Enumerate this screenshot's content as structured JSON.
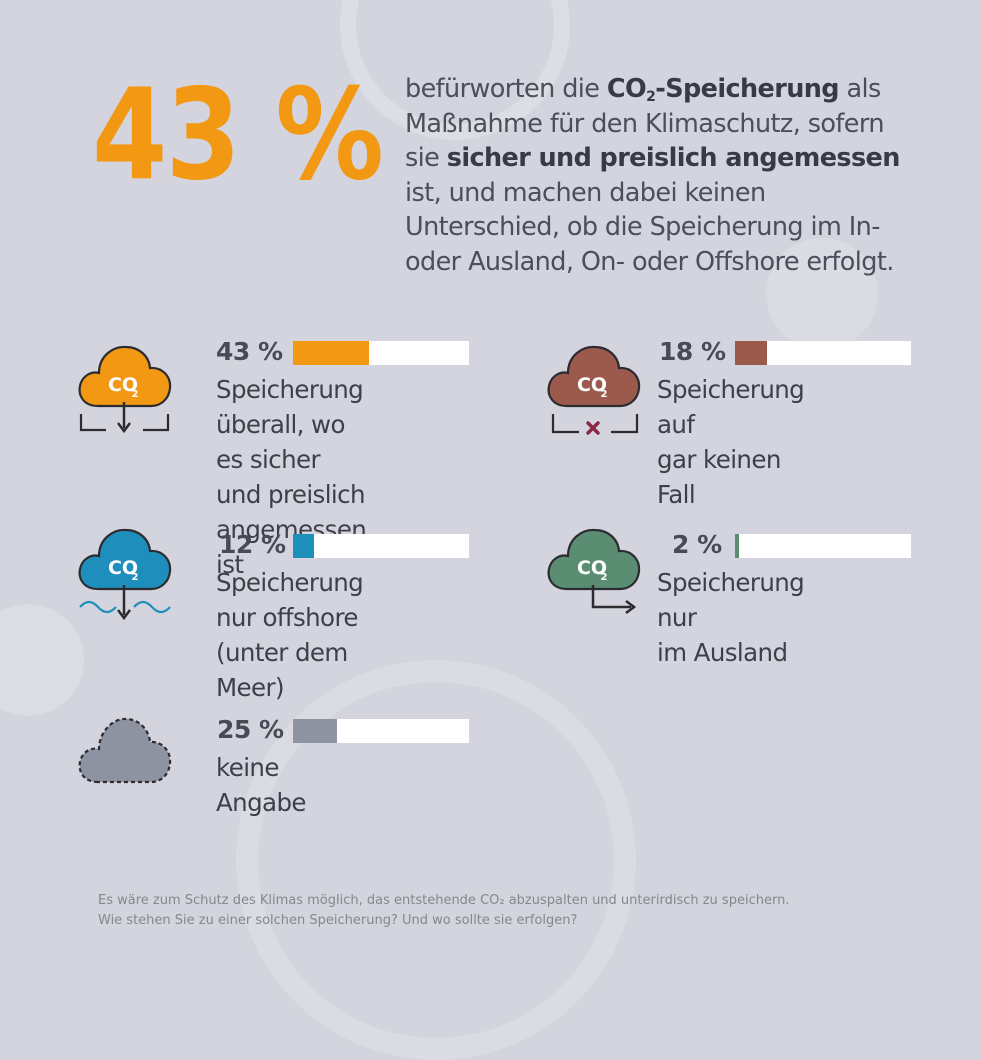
{
  "headline": {
    "big_percent": "43 %",
    "text_1": "befürworten die ",
    "co2_bold": "CO",
    "co2_sub": "2",
    "storage_bold": "-Speicherung",
    "text_2": " als Maßnahme für den Klimaschutz, sofern sie ",
    "condition_bold": "sicher und preislich angemessen",
    "text_3": " ist, und machen dabei keinen Unterschied, ob die Speicherung im In- oder Ausland, On- oder Offshore erfolgt."
  },
  "icon_text": {
    "co": "CO",
    "sub": "2"
  },
  "colors": {
    "background": "#d4d4de",
    "accent_orange": "#f39813",
    "brown": "#9b5a4c",
    "blue": "#1e8fbc",
    "green": "#5b8d72",
    "gray": "#8e93a2",
    "cross": "#8a2846"
  },
  "chart_data": {
    "type": "bar",
    "categories": [
      "Speicherung überall, wo es sicher und preislich angemessen ist",
      "Speicherung auf gar keinen Fall",
      "Speicherung nur offshore (unter dem Meer)",
      "Speicherung nur im Ausland",
      "keine Angabe"
    ],
    "values": [
      43,
      18,
      12,
      2,
      25
    ],
    "unit": "%",
    "ylim": [
      0,
      100
    ]
  },
  "items": [
    {
      "percent_label": "43 %",
      "value": 43,
      "color": "#f39813",
      "icon": "cloud-co2-down-arrow-icon",
      "label_lines": [
        "Speicherung überall, wo",
        "es sicher und preislich",
        "angemessen ist"
      ]
    },
    {
      "percent_label": "18 %",
      "value": 18,
      "color": "#9b5a4c",
      "icon": "cloud-co2-cross-icon",
      "label_lines": [
        "Speicherung auf",
        "gar keinen Fall"
      ]
    },
    {
      "percent_label": "12 %",
      "value": 12,
      "color": "#1e8fbc",
      "icon": "cloud-co2-offshore-icon",
      "label_lines": [
        "Speicherung nur offshore",
        "(unter dem Meer)"
      ]
    },
    {
      "percent_label": "2 %",
      "value": 2,
      "color": "#5b8d72",
      "icon": "cloud-co2-abroad-arrow-icon",
      "label_lines": [
        "Speicherung nur",
        "im Ausland"
      ]
    },
    {
      "percent_label": "25 %",
      "value": 25,
      "color": "#8e93a2",
      "icon": "cloud-dashed-icon",
      "label_lines": [
        "keine Angabe"
      ]
    }
  ],
  "footnote": {
    "line_1": "Es wäre zum Schutz des Klimas möglich, das entstehende CO₂ abzuspalten und unterirdisch zu speichern.",
    "line_2": "Wie stehen Sie zu einer solchen Speicherung? Und wo sollte sie erfolgen?"
  }
}
